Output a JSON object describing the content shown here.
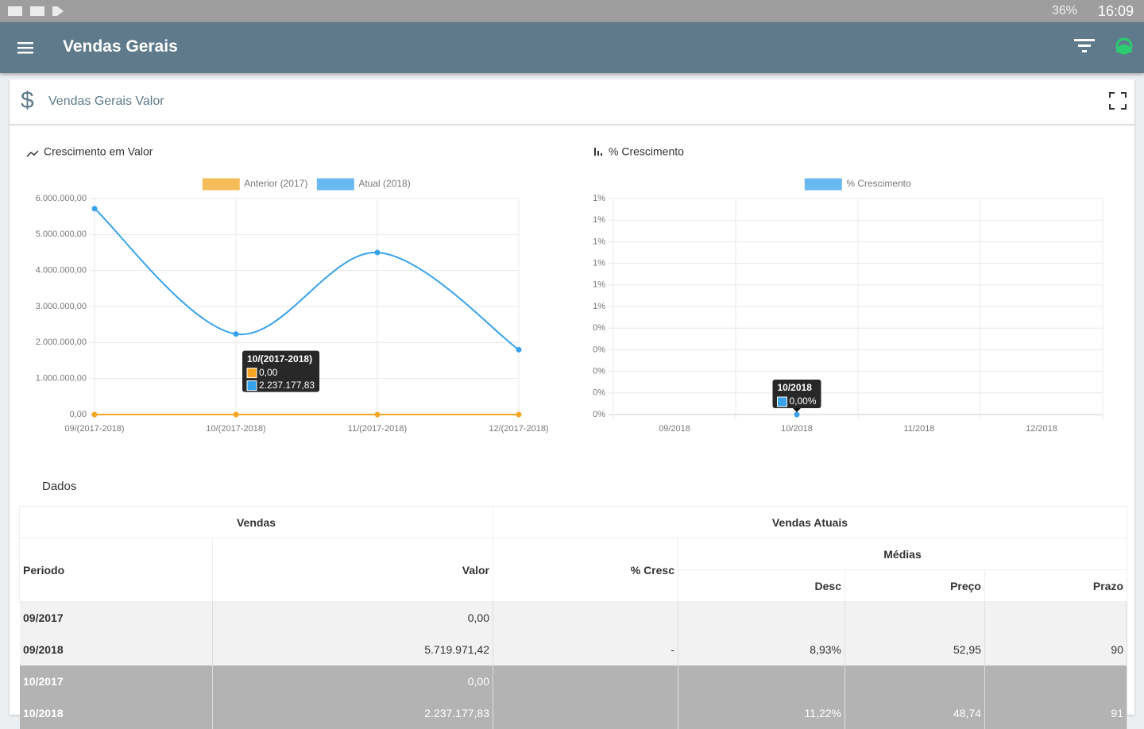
{
  "status_bar": {
    "battery": "36%",
    "time": "16:09"
  },
  "app_bar": {
    "title": "Vendas Gerais"
  },
  "card": {
    "title": "Vendas Gerais Valor"
  },
  "chart_data": [
    {
      "type": "line",
      "title": "Crescimento em Valor",
      "categories": [
        "09/(2017-2018)",
        "10/(2017-2018)",
        "11/(2017-2018)",
        "12/(2017-2018)"
      ],
      "series": [
        {
          "name": "Anterior (2017)",
          "color": "#f5a623",
          "values": [
            0,
            0,
            0,
            0
          ]
        },
        {
          "name": "Atual (2018)",
          "color": "#36a2eb",
          "values": [
            5719971.42,
            2237177.83,
            4500000,
            1800000
          ]
        }
      ],
      "ylim": [
        0,
        6000000
      ],
      "yticks": [
        {
          "value": 0,
          "label": "0,00"
        },
        {
          "value": 1000000,
          "label": "1.000.000,00"
        },
        {
          "value": 2000000,
          "label": "2.000.000,00"
        },
        {
          "value": 3000000,
          "label": "3.000.000,00"
        },
        {
          "value": 4000000,
          "label": "4.000.000,00"
        },
        {
          "value": 5000000,
          "label": "5.000.000,00"
        },
        {
          "value": 6000000,
          "label": "6.000.000,00"
        }
      ],
      "grid": true,
      "tooltip": {
        "title": "10/(2017-2018)",
        "lines": [
          "0,00",
          "2.237.177,83"
        ]
      }
    },
    {
      "type": "line",
      "title": "% Crescimento",
      "categories": [
        "09/2018",
        "10/2018",
        "11/2018",
        "12/2018"
      ],
      "series": [
        {
          "name": "% Crescimento",
          "color": "#36a2eb",
          "values": [
            null,
            0,
            null,
            null
          ]
        }
      ],
      "ylim": [
        0,
        1
      ],
      "yticks": [
        {
          "value": 0,
          "label": "0%"
        },
        {
          "value": 0.1,
          "label": "0%"
        },
        {
          "value": 0.2,
          "label": "0%"
        },
        {
          "value": 0.3,
          "label": "0%"
        },
        {
          "value": 0.4,
          "label": "0%"
        },
        {
          "value": 0.5,
          "label": "1%"
        },
        {
          "value": 0.6,
          "label": "1%"
        },
        {
          "value": 0.7,
          "label": "1%"
        },
        {
          "value": 0.8,
          "label": "1%"
        },
        {
          "value": 0.9,
          "label": "1%"
        },
        {
          "value": 1,
          "label": "1%"
        }
      ],
      "grid": true,
      "tooltip": {
        "title": "10/2018",
        "lines": [
          "0,00%"
        ]
      }
    }
  ],
  "table": {
    "title": "Dados",
    "groups": [
      "Vendas",
      "Vendas Atuais"
    ],
    "columns": [
      "Periodo",
      "Valor",
      "% Cresc",
      "Desc",
      "Preço",
      "Prazo"
    ],
    "subheader": "Médias",
    "rows": [
      [
        "09/2017",
        "0,00",
        null,
        null,
        null,
        null
      ],
      [
        "09/2018",
        "5.719.971,42",
        "-",
        "8,93%",
        "52,95",
        "90"
      ],
      [
        "10/2017",
        "0,00",
        null,
        null,
        null,
        null
      ],
      [
        "10/2018",
        "2.237.177,83",
        null,
        "11,22%",
        "48,74",
        "91"
      ]
    ]
  }
}
